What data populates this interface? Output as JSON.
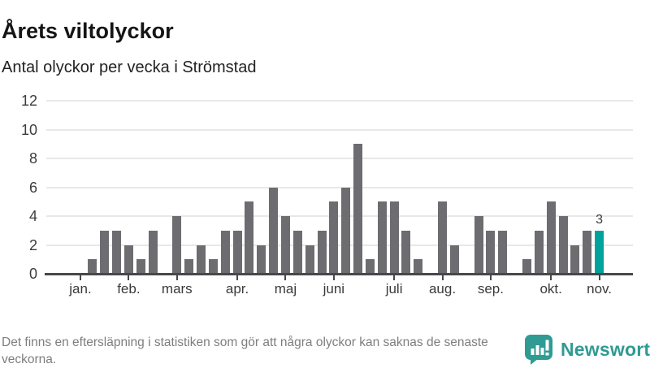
{
  "header": {
    "title": "Årets viltolyckor",
    "subtitle": "Antal olyckor per vecka i Strömstad"
  },
  "chart_data": {
    "type": "bar",
    "title": "Årets viltolyckor",
    "subtitle": "Antal olyckor per vecka i Strömstad",
    "xlabel": "",
    "ylabel": "Antal olyckor per vecka",
    "ylim": [
      0,
      12
    ],
    "yticks": [
      0,
      2,
      4,
      6,
      8,
      10,
      12
    ],
    "grid": "horizontal",
    "legend_position": "none",
    "weekly_values": [
      0,
      0,
      0,
      1,
      3,
      3,
      2,
      1,
      3,
      0,
      4,
      1,
      2,
      1,
      3,
      3,
      5,
      2,
      6,
      4,
      3,
      2,
      3,
      5,
      6,
      9,
      1,
      5,
      5,
      3,
      1,
      0,
      5,
      2,
      0,
      4,
      3,
      3,
      0,
      1,
      3,
      5,
      4,
      2,
      3,
      3,
      0
    ],
    "month_ticks": [
      {
        "label": "jan.",
        "index": 2
      },
      {
        "label": "feb.",
        "index": 6
      },
      {
        "label": "mars",
        "index": 10
      },
      {
        "label": "apr.",
        "index": 15
      },
      {
        "label": "maj",
        "index": 19
      },
      {
        "label": "juni",
        "index": 23
      },
      {
        "label": "juli",
        "index": 28
      },
      {
        "label": "aug.",
        "index": 32
      },
      {
        "label": "sep.",
        "index": 36
      },
      {
        "label": "okt.",
        "index": 41
      },
      {
        "label": "nov.",
        "index": 45
      }
    ],
    "highlight_index": 45,
    "highlight_value_label": "3",
    "colors": {
      "bar": "#6c6c71",
      "highlight": "#00a39b",
      "grid": "#e8e8e8",
      "axis": "#48484a"
    }
  },
  "footer": {
    "note": "Det finns en eftersläpning i statistiken som gör att några olyckor kan saknas de senaste veckorna.",
    "brand": "Newsworthy"
  },
  "icons": {
    "logo": "newsworthy-speech-bubble-barchart-icon"
  }
}
